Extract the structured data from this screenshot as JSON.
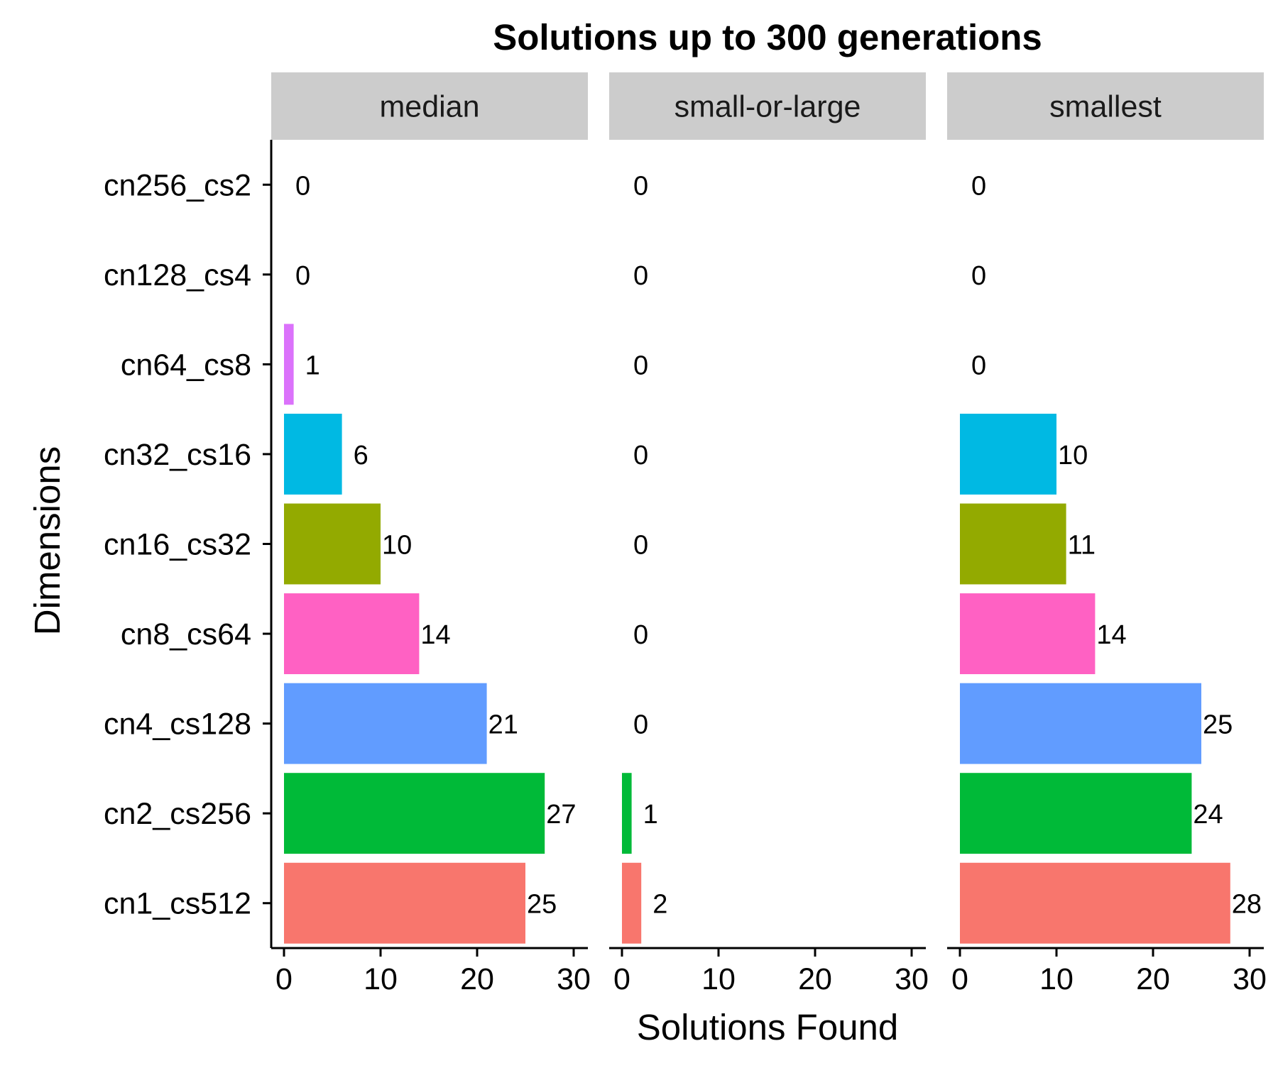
{
  "chart_data": {
    "type": "bar",
    "orientation": "horizontal",
    "title": "Solutions up to 300 generations",
    "xlabel": "Solutions Found",
    "ylabel": "Dimensions",
    "categories": [
      "cn1_cs512",
      "cn2_cs256",
      "cn4_cs128",
      "cn8_cs64",
      "cn16_cs32",
      "cn32_cs16",
      "cn64_cs8",
      "cn128_cs4",
      "cn256_cs2"
    ],
    "category_colors": [
      "#F8766D",
      "#00BA38",
      "#619CFF",
      "#FF61C3",
      "#93AA00",
      "#00B9E3",
      "#DB72FB",
      "#C49A00",
      "#00C19F"
    ],
    "xlim": [
      0,
      30
    ],
    "xticks": [
      0,
      10,
      20,
      30
    ],
    "grid": false,
    "legend": "none",
    "facets": [
      {
        "name": "median",
        "values": [
          25,
          27,
          21,
          14,
          10,
          6,
          1,
          0,
          0
        ]
      },
      {
        "name": "small-or-large",
        "values": [
          2,
          1,
          0,
          0,
          0,
          0,
          0,
          0,
          0
        ]
      },
      {
        "name": "smallest",
        "values": [
          28,
          24,
          25,
          14,
          11,
          10,
          0,
          0,
          0
        ]
      }
    ]
  }
}
